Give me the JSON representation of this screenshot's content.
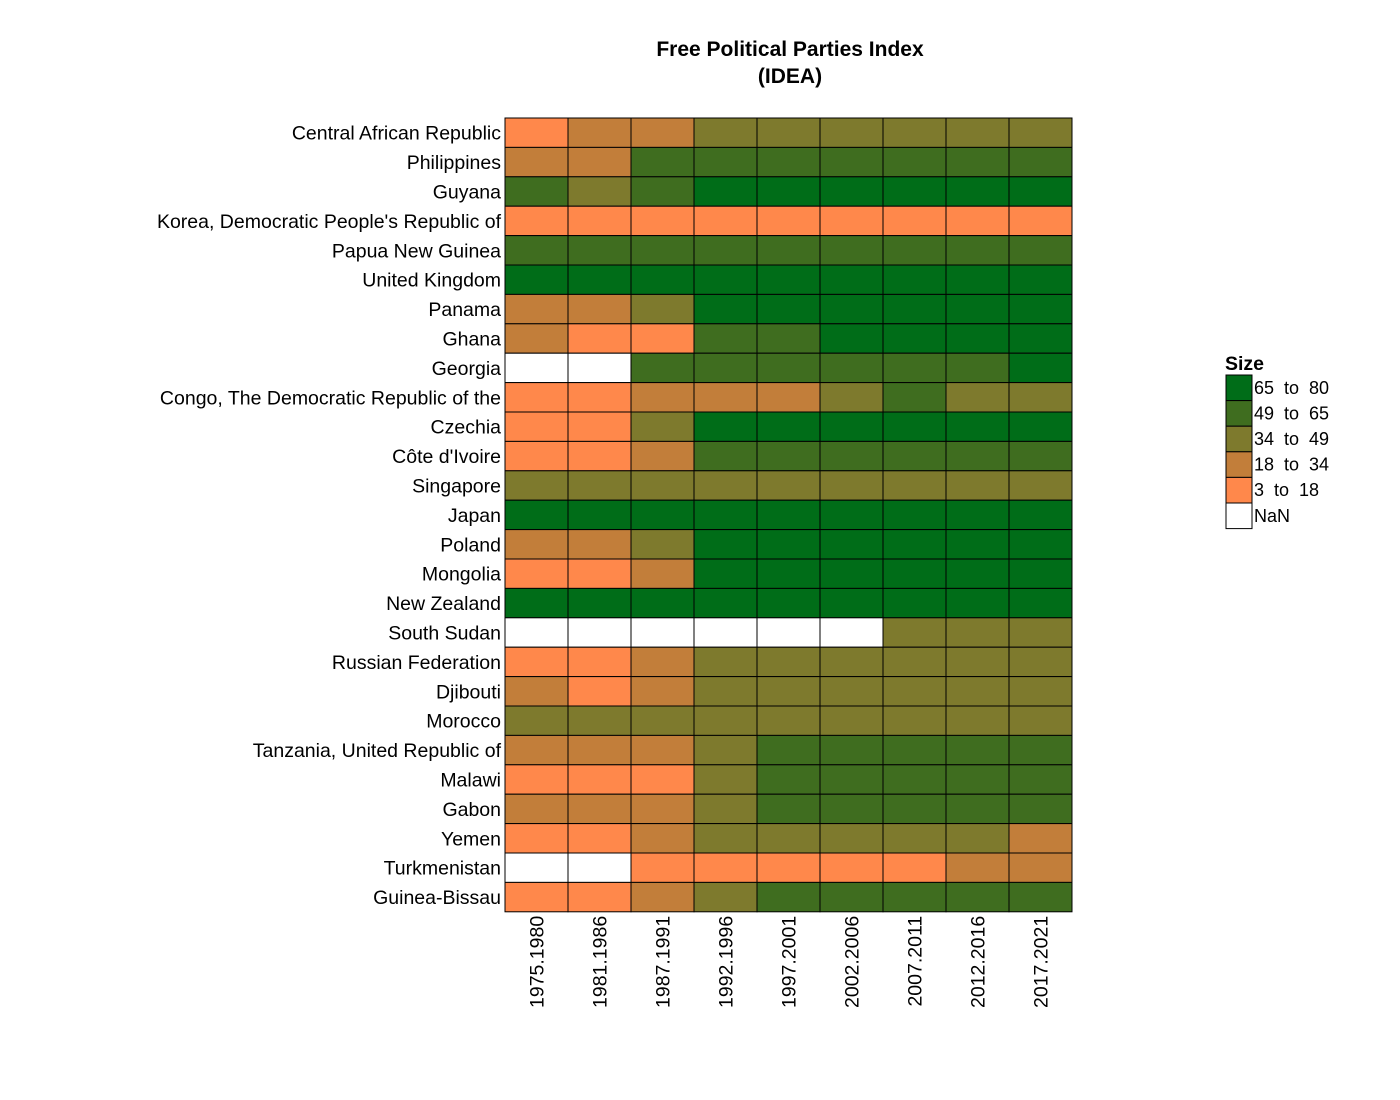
{
  "chart_data": {
    "type": "heatmap",
    "title": "Free Political Parties Index",
    "subtitle": "(IDEA)",
    "columns": [
      "1975.1980",
      "1981.1986",
      "1987.1991",
      "1992.1996",
      "1997.2001",
      "2002.2006",
      "2007.2011",
      "2012.2016",
      "2017.2021"
    ],
    "rows": [
      "Central African Republic",
      "Philippines",
      "Guyana",
      "Korea, Democratic People's Republic of",
      "Papua New Guinea",
      "United Kingdom",
      "Panama",
      "Ghana",
      "Georgia",
      "Congo, The Democratic Republic of the",
      "Czechia",
      "Côte d'Ivoire",
      "Singapore",
      "Japan",
      "Poland",
      "Mongolia",
      "New Zealand",
      "South Sudan",
      "Russian Federation",
      "Djibouti",
      "Morocco",
      "Tanzania, United Republic of",
      "Malawi",
      "Gabon",
      "Yemen",
      "Turkmenistan",
      "Guinea-Bissau"
    ],
    "bins": [
      {
        "label": "65  to  80",
        "color": "#006D18"
      },
      {
        "label": "49  to  65",
        "color": "#3F6D1F"
      },
      {
        "label": "34  to  49",
        "color": "#7E7A2D"
      },
      {
        "label": "18  to  34",
        "color": "#C27E3A"
      },
      {
        "label": "3  to  18",
        "color": "#FF884B"
      },
      {
        "label": "NaN",
        "color": "#FFFFFF"
      }
    ],
    "cells": [
      [
        "3 to 18",
        "18 to 34",
        "18 to 34",
        "34 to 49",
        "34 to 49",
        "34 to 49",
        "34 to 49",
        "34 to 49",
        "34 to 49"
      ],
      [
        "18 to 34",
        "18 to 34",
        "49 to 65",
        "49 to 65",
        "49 to 65",
        "49 to 65",
        "49 to 65",
        "49 to 65",
        "49 to 65"
      ],
      [
        "49 to 65",
        "34 to 49",
        "49 to 65",
        "65 to 80",
        "65 to 80",
        "65 to 80",
        "65 to 80",
        "65 to 80",
        "65 to 80"
      ],
      [
        "3 to 18",
        "3 to 18",
        "3 to 18",
        "3 to 18",
        "3 to 18",
        "3 to 18",
        "3 to 18",
        "3 to 18",
        "3 to 18"
      ],
      [
        "49 to 65",
        "49 to 65",
        "49 to 65",
        "49 to 65",
        "49 to 65",
        "49 to 65",
        "49 to 65",
        "49 to 65",
        "49 to 65"
      ],
      [
        "65 to 80",
        "65 to 80",
        "65 to 80",
        "65 to 80",
        "65 to 80",
        "65 to 80",
        "65 to 80",
        "65 to 80",
        "65 to 80"
      ],
      [
        "18 to 34",
        "18 to 34",
        "34 to 49",
        "65 to 80",
        "65 to 80",
        "65 to 80",
        "65 to 80",
        "65 to 80",
        "65 to 80"
      ],
      [
        "18 to 34",
        "3 to 18",
        "3 to 18",
        "49 to 65",
        "49 to 65",
        "65 to 80",
        "65 to 80",
        "65 to 80",
        "65 to 80"
      ],
      [
        "NaN",
        "NaN",
        "49 to 65",
        "49 to 65",
        "49 to 65",
        "49 to 65",
        "49 to 65",
        "49 to 65",
        "65 to 80"
      ],
      [
        "3 to 18",
        "3 to 18",
        "18 to 34",
        "18 to 34",
        "18 to 34",
        "34 to 49",
        "49 to 65",
        "34 to 49",
        "34 to 49"
      ],
      [
        "3 to 18",
        "3 to 18",
        "34 to 49",
        "65 to 80",
        "65 to 80",
        "65 to 80",
        "65 to 80",
        "65 to 80",
        "65 to 80"
      ],
      [
        "3 to 18",
        "3 to 18",
        "18 to 34",
        "49 to 65",
        "49 to 65",
        "49 to 65",
        "49 to 65",
        "49 to 65",
        "49 to 65"
      ],
      [
        "34 to 49",
        "34 to 49",
        "34 to 49",
        "34 to 49",
        "34 to 49",
        "34 to 49",
        "34 to 49",
        "34 to 49",
        "34 to 49"
      ],
      [
        "65 to 80",
        "65 to 80",
        "65 to 80",
        "65 to 80",
        "65 to 80",
        "65 to 80",
        "65 to 80",
        "65 to 80",
        "65 to 80"
      ],
      [
        "18 to 34",
        "18 to 34",
        "34 to 49",
        "65 to 80",
        "65 to 80",
        "65 to 80",
        "65 to 80",
        "65 to 80",
        "65 to 80"
      ],
      [
        "3 to 18",
        "3 to 18",
        "18 to 34",
        "65 to 80",
        "65 to 80",
        "65 to 80",
        "65 to 80",
        "65 to 80",
        "65 to 80"
      ],
      [
        "65 to 80",
        "65 to 80",
        "65 to 80",
        "65 to 80",
        "65 to 80",
        "65 to 80",
        "65 to 80",
        "65 to 80",
        "65 to 80"
      ],
      [
        "NaN",
        "NaN",
        "NaN",
        "NaN",
        "NaN",
        "NaN",
        "34 to 49",
        "34 to 49",
        "34 to 49"
      ],
      [
        "3 to 18",
        "3 to 18",
        "18 to 34",
        "34 to 49",
        "34 to 49",
        "34 to 49",
        "34 to 49",
        "34 to 49",
        "34 to 49"
      ],
      [
        "18 to 34",
        "3 to 18",
        "18 to 34",
        "34 to 49",
        "34 to 49",
        "34 to 49",
        "34 to 49",
        "34 to 49",
        "34 to 49"
      ],
      [
        "34 to 49",
        "34 to 49",
        "34 to 49",
        "34 to 49",
        "34 to 49",
        "34 to 49",
        "34 to 49",
        "34 to 49",
        "34 to 49"
      ],
      [
        "18 to 34",
        "18 to 34",
        "18 to 34",
        "34 to 49",
        "49 to 65",
        "49 to 65",
        "49 to 65",
        "49 to 65",
        "49 to 65"
      ],
      [
        "3 to 18",
        "3 to 18",
        "3 to 18",
        "34 to 49",
        "49 to 65",
        "49 to 65",
        "49 to 65",
        "49 to 65",
        "49 to 65"
      ],
      [
        "18 to 34",
        "18 to 34",
        "18 to 34",
        "34 to 49",
        "49 to 65",
        "49 to 65",
        "49 to 65",
        "49 to 65",
        "49 to 65"
      ],
      [
        "3 to 18",
        "3 to 18",
        "18 to 34",
        "34 to 49",
        "34 to 49",
        "34 to 49",
        "34 to 49",
        "34 to 49",
        "18 to 34"
      ],
      [
        "NaN",
        "NaN",
        "3 to 18",
        "3 to 18",
        "3 to 18",
        "3 to 18",
        "3 to 18",
        "18 to 34",
        "18 to 34"
      ],
      [
        "3 to 18",
        "3 to 18",
        "18 to 34",
        "34 to 49",
        "49 to 65",
        "49 to 65",
        "49 to 65",
        "49 to 65",
        "49 to 65"
      ]
    ],
    "legend": {
      "title": "Size",
      "placement": "right"
    },
    "grid": false
  }
}
